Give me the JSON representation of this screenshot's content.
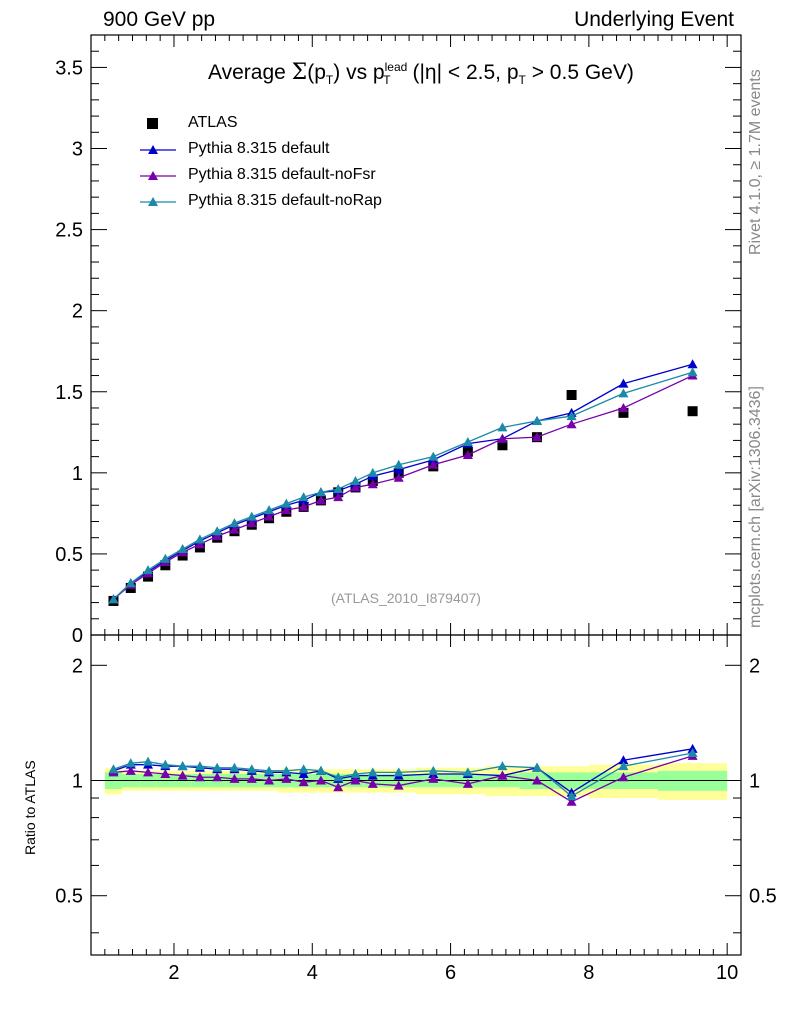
{
  "header": {
    "left": "900 GeV pp",
    "right": "Underlying Event"
  },
  "side_labels": {
    "rivet": "Rivet 4.1.0, ≥ 1.7M events",
    "mcplots": "mcplots.cern.ch [arXiv:1306.3436]"
  },
  "title": {
    "prefix": "Average ",
    "sigma": "Σ",
    "p_open": "(p",
    "t1_sub": "T",
    "p_close": ") vs p",
    "t2_sub": "T",
    "lead_sup": "lead",
    "suffix_a": " (|η| < 2.5, p",
    "t3_sub": "T",
    "suffix_b": " > 0.5 GeV)"
  },
  "reference_label": "(ATLAS_2010_I879407)",
  "colors": {
    "data": "#000000",
    "default": "#0000cc",
    "noFsr": "#7700aa",
    "noRap": "#1a8aa8",
    "band_inner": "#99ff99",
    "band_outer": "#ffff99"
  },
  "chart_data": [
    {
      "type": "scatter",
      "panel": "main",
      "title": "Average Σ(pT) vs pT lead (|η| < 2.5, pT > 0.5 GeV)",
      "xlabel": "",
      "ylabel": "",
      "xlim": [
        0.8,
        10.2
      ],
      "ylim": [
        0,
        3.7
      ],
      "yticks": [
        0,
        0.5,
        1,
        1.5,
        2,
        2.5,
        3,
        3.5
      ],
      "ytick_labels": [
        "0",
        "0.5",
        "1",
        "1.5",
        "2",
        "2.5",
        "3",
        "3.5"
      ],
      "x": [
        1.125,
        1.375,
        1.625,
        1.875,
        2.125,
        2.375,
        2.625,
        2.875,
        3.125,
        3.375,
        3.625,
        3.875,
        4.125,
        4.375,
        4.625,
        4.875,
        5.25,
        5.75,
        6.25,
        6.75,
        7.25,
        7.75,
        8.5,
        9.5
      ],
      "series": [
        {
          "name": "ATLAS",
          "marker": "square",
          "color": "#000000",
          "values": [
            0.21,
            0.29,
            0.36,
            0.43,
            0.49,
            0.54,
            0.6,
            0.64,
            0.68,
            0.72,
            0.76,
            0.79,
            0.83,
            0.88,
            0.91,
            0.95,
            1.0,
            1.04,
            1.13,
            1.17,
            1.22,
            1.48,
            1.37,
            1.38
          ]
        },
        {
          "name": "Pythia 8.315 default",
          "marker": "triangle",
          "color": "#0000cc",
          "values": [
            0.22,
            0.32,
            0.39,
            0.46,
            0.52,
            0.58,
            0.63,
            0.68,
            0.72,
            0.76,
            0.8,
            0.83,
            0.88,
            0.89,
            0.93,
            0.98,
            1.02,
            1.08,
            1.18,
            1.21,
            1.32,
            1.37,
            1.55,
            1.67
          ]
        },
        {
          "name": "Pythia 8.315 default-noFsr",
          "marker": "triangle",
          "color": "#7700aa",
          "values": [
            0.22,
            0.31,
            0.38,
            0.45,
            0.51,
            0.56,
            0.61,
            0.65,
            0.69,
            0.73,
            0.77,
            0.79,
            0.83,
            0.85,
            0.91,
            0.93,
            0.97,
            1.05,
            1.11,
            1.21,
            1.22,
            1.3,
            1.4,
            1.6
          ]
        },
        {
          "name": "Pythia 8.315 default-noRap",
          "marker": "triangle",
          "color": "#1a8aa8",
          "values": [
            0.22,
            0.32,
            0.4,
            0.47,
            0.53,
            0.59,
            0.64,
            0.69,
            0.73,
            0.77,
            0.81,
            0.85,
            0.88,
            0.9,
            0.95,
            1.0,
            1.05,
            1.1,
            1.19,
            1.28,
            1.32,
            1.35,
            1.49,
            1.62
          ]
        }
      ]
    },
    {
      "type": "scatter",
      "panel": "ratio",
      "xlabel": "",
      "ylabel": "Ratio to ATLAS",
      "xlim": [
        0.8,
        10.2
      ],
      "ylim": [
        0.35,
        2.4
      ],
      "yticks": [
        0.5,
        1,
        2
      ],
      "ytick_labels": [
        "0.5",
        "1",
        "2"
      ],
      "xticks": [
        2,
        4,
        6,
        8,
        10
      ],
      "xtick_labels": [
        "2",
        "4",
        "6",
        "8",
        "10"
      ],
      "x": [
        1.125,
        1.375,
        1.625,
        1.875,
        2.125,
        2.375,
        2.625,
        2.875,
        3.125,
        3.375,
        3.625,
        3.875,
        4.125,
        4.375,
        4.625,
        4.875,
        5.25,
        5.75,
        6.25,
        6.75,
        7.25,
        7.75,
        8.5,
        9.5
      ],
      "bin_edges": [
        1.0,
        1.25,
        1.5,
        1.75,
        2.0,
        2.25,
        2.5,
        2.75,
        3.0,
        3.25,
        3.5,
        3.75,
        4.0,
        4.25,
        4.5,
        4.75,
        5.0,
        5.5,
        6.0,
        6.5,
        7.0,
        7.5,
        8.0,
        9.0,
        10.0
      ],
      "band_inner_half_width": [
        0.05,
        0.04,
        0.04,
        0.04,
        0.04,
        0.04,
        0.04,
        0.04,
        0.04,
        0.04,
        0.04,
        0.04,
        0.04,
        0.04,
        0.04,
        0.04,
        0.04,
        0.04,
        0.04,
        0.04,
        0.05,
        0.05,
        0.05,
        0.06
      ],
      "band_outer_half_width": [
        0.08,
        0.06,
        0.06,
        0.06,
        0.06,
        0.06,
        0.06,
        0.06,
        0.06,
        0.06,
        0.07,
        0.07,
        0.07,
        0.07,
        0.07,
        0.07,
        0.07,
        0.08,
        0.08,
        0.09,
        0.09,
        0.09,
        0.1,
        0.11
      ],
      "series": [
        {
          "name": "Pythia 8.315 default",
          "color": "#0000cc",
          "values": [
            1.06,
            1.1,
            1.1,
            1.09,
            1.09,
            1.08,
            1.07,
            1.07,
            1.06,
            1.05,
            1.05,
            1.04,
            1.06,
            1.01,
            1.03,
            1.03,
            1.03,
            1.04,
            1.04,
            1.03,
            1.08,
            0.93,
            1.13,
            1.21
          ]
        },
        {
          "name": "Pythia 8.315 default-noFsr",
          "color": "#7700aa",
          "values": [
            1.05,
            1.06,
            1.05,
            1.04,
            1.03,
            1.02,
            1.02,
            1.01,
            1.01,
            1.0,
            1.01,
            0.99,
            1.0,
            0.96,
            1.0,
            0.98,
            0.97,
            1.01,
            0.98,
            1.03,
            1.0,
            0.88,
            1.02,
            1.16
          ]
        },
        {
          "name": "Pythia 8.315 default-noRap",
          "color": "#1a8aa8",
          "values": [
            1.07,
            1.11,
            1.12,
            1.1,
            1.09,
            1.09,
            1.08,
            1.08,
            1.07,
            1.06,
            1.06,
            1.07,
            1.06,
            1.02,
            1.04,
            1.05,
            1.05,
            1.06,
            1.05,
            1.09,
            1.08,
            0.91,
            1.09,
            1.18
          ]
        }
      ]
    }
  ]
}
